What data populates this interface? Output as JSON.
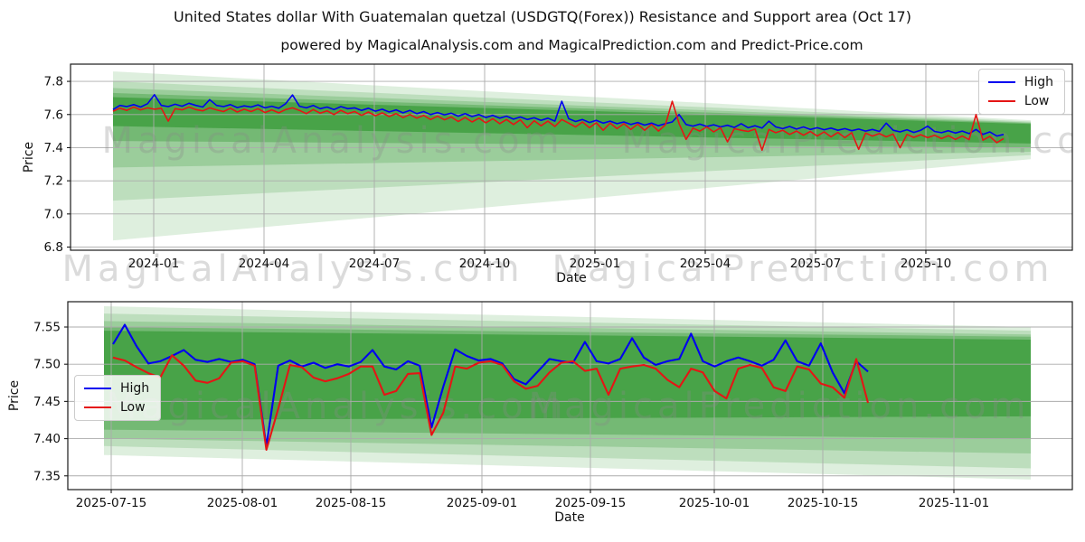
{
  "title": "United States dollar With Guatemalan quetzal (USDGTQ(Forex)) Resistance and Support area (Oct 17)",
  "subtitle": "powered by MagicalAnalysis.com and MagicalPrediction.com and Predict-Price.com",
  "watermarks": {
    "left": "MagicalAnalysis.com",
    "right": "MagicalPrediction.com",
    "color": "#8a8a8a"
  },
  "colors": {
    "high": "#0000f0",
    "low": "#e51515",
    "band": "#008000",
    "grid": "#ababab",
    "frame": "#1a1a1a",
    "text": "#111111"
  },
  "chart_data": [
    {
      "type": "line",
      "xlabel": "Date",
      "ylabel": "Price",
      "legend_position": "upper right",
      "grid": true,
      "x_tick_labels": [
        "2024-01",
        "2024-04",
        "2024-07",
        "2024-10",
        "2025-01",
        "2025-04",
        "2025-07",
        "2025-10"
      ],
      "y_tick_labels": [
        "7.8",
        "7.6",
        "7.4",
        "7.2",
        "7.0",
        "6.8"
      ],
      "y_tick_values": [
        7.8,
        7.6,
        7.4,
        7.2,
        7.0,
        6.8
      ],
      "ylim": [
        6.781,
        7.904
      ],
      "bands": {
        "color": "#008000",
        "layers": [
          {
            "top": [
              7.86,
              7.565
            ],
            "bottom": [
              6.84,
              7.33
            ],
            "opacity": 0.13
          },
          {
            "top": [
              7.8,
              7.558
            ],
            "bottom": [
              7.08,
              7.355
            ],
            "opacity": 0.15
          },
          {
            "top": [
              7.76,
              7.552
            ],
            "bottom": [
              7.28,
              7.375
            ],
            "opacity": 0.18
          },
          {
            "top": [
              7.73,
              7.548
            ],
            "bottom": [
              7.44,
              7.4
            ],
            "opacity": 0.25
          },
          {
            "top": [
              7.705,
              7.543
            ],
            "bottom": [
              7.53,
              7.425
            ],
            "opacity": 0.38
          }
        ]
      },
      "series": [
        {
          "name": "High",
          "color": "#0000f0",
          "values": [
            7.63,
            7.655,
            7.648,
            7.66,
            7.645,
            7.665,
            7.72,
            7.655,
            7.648,
            7.662,
            7.65,
            7.668,
            7.655,
            7.645,
            7.69,
            7.655,
            7.648,
            7.66,
            7.642,
            7.652,
            7.645,
            7.658,
            7.64,
            7.65,
            7.638,
            7.665,
            7.718,
            7.65,
            7.64,
            7.655,
            7.635,
            7.645,
            7.63,
            7.648,
            7.635,
            7.64,
            7.625,
            7.638,
            7.62,
            7.632,
            7.615,
            7.628,
            7.61,
            7.625,
            7.605,
            7.618,
            7.6,
            7.612,
            7.598,
            7.608,
            7.59,
            7.605,
            7.588,
            7.6,
            7.582,
            7.595,
            7.578,
            7.59,
            7.572,
            7.585,
            7.57,
            7.58,
            7.565,
            7.578,
            7.56,
            7.68,
            7.575,
            7.558,
            7.57,
            7.552,
            7.565,
            7.548,
            7.56,
            7.545,
            7.555,
            7.54,
            7.552,
            7.536,
            7.548,
            7.532,
            7.545,
            7.555,
            7.6,
            7.54,
            7.53,
            7.542,
            7.528,
            7.538,
            7.525,
            7.535,
            7.522,
            7.545,
            7.52,
            7.532,
            7.518,
            7.56,
            7.525,
            7.515,
            7.528,
            7.512,
            7.525,
            7.51,
            7.52,
            7.508,
            7.518,
            7.505,
            7.515,
            7.502,
            7.512,
            7.5,
            7.51,
            7.498,
            7.548,
            7.505,
            7.495,
            7.508,
            7.492,
            7.505,
            7.53,
            7.498,
            7.49,
            7.502,
            7.488,
            7.5,
            7.485,
            7.51,
            7.48,
            7.495,
            7.47,
            7.48
          ]
        },
        {
          "name": "Low",
          "color": "#e51515",
          "values": [
            7.62,
            7.638,
            7.625,
            7.645,
            7.628,
            7.64,
            7.632,
            7.638,
            7.56,
            7.635,
            7.628,
            7.645,
            7.63,
            7.622,
            7.64,
            7.628,
            7.618,
            7.638,
            7.615,
            7.632,
            7.618,
            7.635,
            7.612,
            7.628,
            7.61,
            7.63,
            7.64,
            7.625,
            7.605,
            7.63,
            7.608,
            7.622,
            7.6,
            7.625,
            7.605,
            7.618,
            7.595,
            7.615,
            7.592,
            7.61,
            7.588,
            7.605,
            7.582,
            7.6,
            7.578,
            7.595,
            7.57,
            7.59,
            7.568,
            7.585,
            7.558,
            7.582,
            7.555,
            7.578,
            7.55,
            7.575,
            7.545,
            7.57,
            7.54,
            7.568,
            7.52,
            7.562,
            7.532,
            7.56,
            7.528,
            7.57,
            7.548,
            7.525,
            7.555,
            7.52,
            7.55,
            7.505,
            7.548,
            7.515,
            7.545,
            7.51,
            7.542,
            7.505,
            7.54,
            7.5,
            7.538,
            7.68,
            7.545,
            7.45,
            7.518,
            7.5,
            7.525,
            7.495,
            7.52,
            7.435,
            7.515,
            7.505,
            7.498,
            7.512,
            7.385,
            7.51,
            7.49,
            7.505,
            7.48,
            7.5,
            7.475,
            7.498,
            7.47,
            7.495,
            7.465,
            7.492,
            7.46,
            7.49,
            7.39,
            7.488,
            7.47,
            7.485,
            7.465,
            7.482,
            7.4,
            7.48,
            7.462,
            7.478,
            7.46,
            7.475,
            7.455,
            7.472,
            7.45,
            7.47,
            7.448,
            7.6,
            7.445,
            7.468,
            7.43,
            7.455
          ]
        }
      ]
    },
    {
      "type": "line",
      "xlabel": "Date",
      "ylabel": "Price",
      "legend_position": "center left",
      "grid": true,
      "x_tick_labels": [
        "2025-07-15",
        "2025-08-01",
        "2025-08-15",
        "2025-09-01",
        "2025-09-15",
        "2025-10-01",
        "2025-10-15",
        "2025-11-01"
      ],
      "y_tick_labels": [
        "7.55",
        "7.50",
        "7.45",
        "7.40",
        "7.35"
      ],
      "y_tick_values": [
        7.55,
        7.5,
        7.45,
        7.4,
        7.35
      ],
      "ylim": [
        7.3315,
        7.584
      ],
      "bands": {
        "color": "#008000",
        "layers": [
          {
            "top": [
              7.578,
              7.55
            ],
            "bottom": [
              7.378,
              7.345
            ],
            "opacity": 0.13
          },
          {
            "top": [
              7.568,
              7.545
            ],
            "bottom": [
              7.39,
              7.36
            ],
            "opacity": 0.15
          },
          {
            "top": [
              7.558,
              7.54
            ],
            "bottom": [
              7.4,
              7.38
            ],
            "opacity": 0.18
          },
          {
            "top": [
              7.55,
              7.537
            ],
            "bottom": [
              7.412,
              7.4
            ],
            "opacity": 0.25
          },
          {
            "top": [
              7.545,
              7.533
            ],
            "bottom": [
              7.425,
              7.43
            ],
            "opacity": 0.38
          }
        ]
      },
      "series": [
        {
          "name": "High",
          "color": "#0000f0",
          "values": [
            7.527,
            7.553,
            7.524,
            7.501,
            7.504,
            7.511,
            7.519,
            7.506,
            7.503,
            7.507,
            7.503,
            7.506,
            7.5,
            7.39,
            7.498,
            7.505,
            7.497,
            7.502,
            7.495,
            7.5,
            7.497,
            7.503,
            7.519,
            7.497,
            7.493,
            7.504,
            7.498,
            7.415,
            7.47,
            7.52,
            7.511,
            7.505,
            7.507,
            7.501,
            7.48,
            7.473,
            7.49,
            7.507,
            7.504,
            7.502,
            7.53,
            7.504,
            7.501,
            7.507,
            7.535,
            7.509,
            7.499,
            7.504,
            7.507,
            7.541,
            7.504,
            7.497,
            7.504,
            7.509,
            7.504,
            7.498,
            7.506,
            7.532,
            7.504,
            7.498,
            7.528,
            7.489,
            7.461,
            7.504,
            7.49
          ]
        },
        {
          "name": "Low",
          "color": "#e51515",
          "values": [
            7.509,
            7.505,
            7.496,
            7.488,
            7.482,
            7.512,
            7.498,
            7.478,
            7.475,
            7.481,
            7.502,
            7.504,
            7.498,
            7.385,
            7.44,
            7.499,
            7.496,
            7.482,
            7.477,
            7.481,
            7.487,
            7.497,
            7.497,
            7.459,
            7.464,
            7.487,
            7.488,
            7.405,
            7.435,
            7.497,
            7.494,
            7.502,
            7.504,
            7.499,
            7.477,
            7.467,
            7.471,
            7.489,
            7.502,
            7.504,
            7.491,
            7.494,
            7.459,
            7.494,
            7.497,
            7.499,
            7.494,
            7.479,
            7.469,
            7.494,
            7.489,
            7.464,
            7.454,
            7.494,
            7.499,
            7.495,
            7.469,
            7.464,
            7.497,
            7.493,
            7.474,
            7.469,
            7.455,
            7.507,
            7.448
          ]
        }
      ]
    }
  ]
}
